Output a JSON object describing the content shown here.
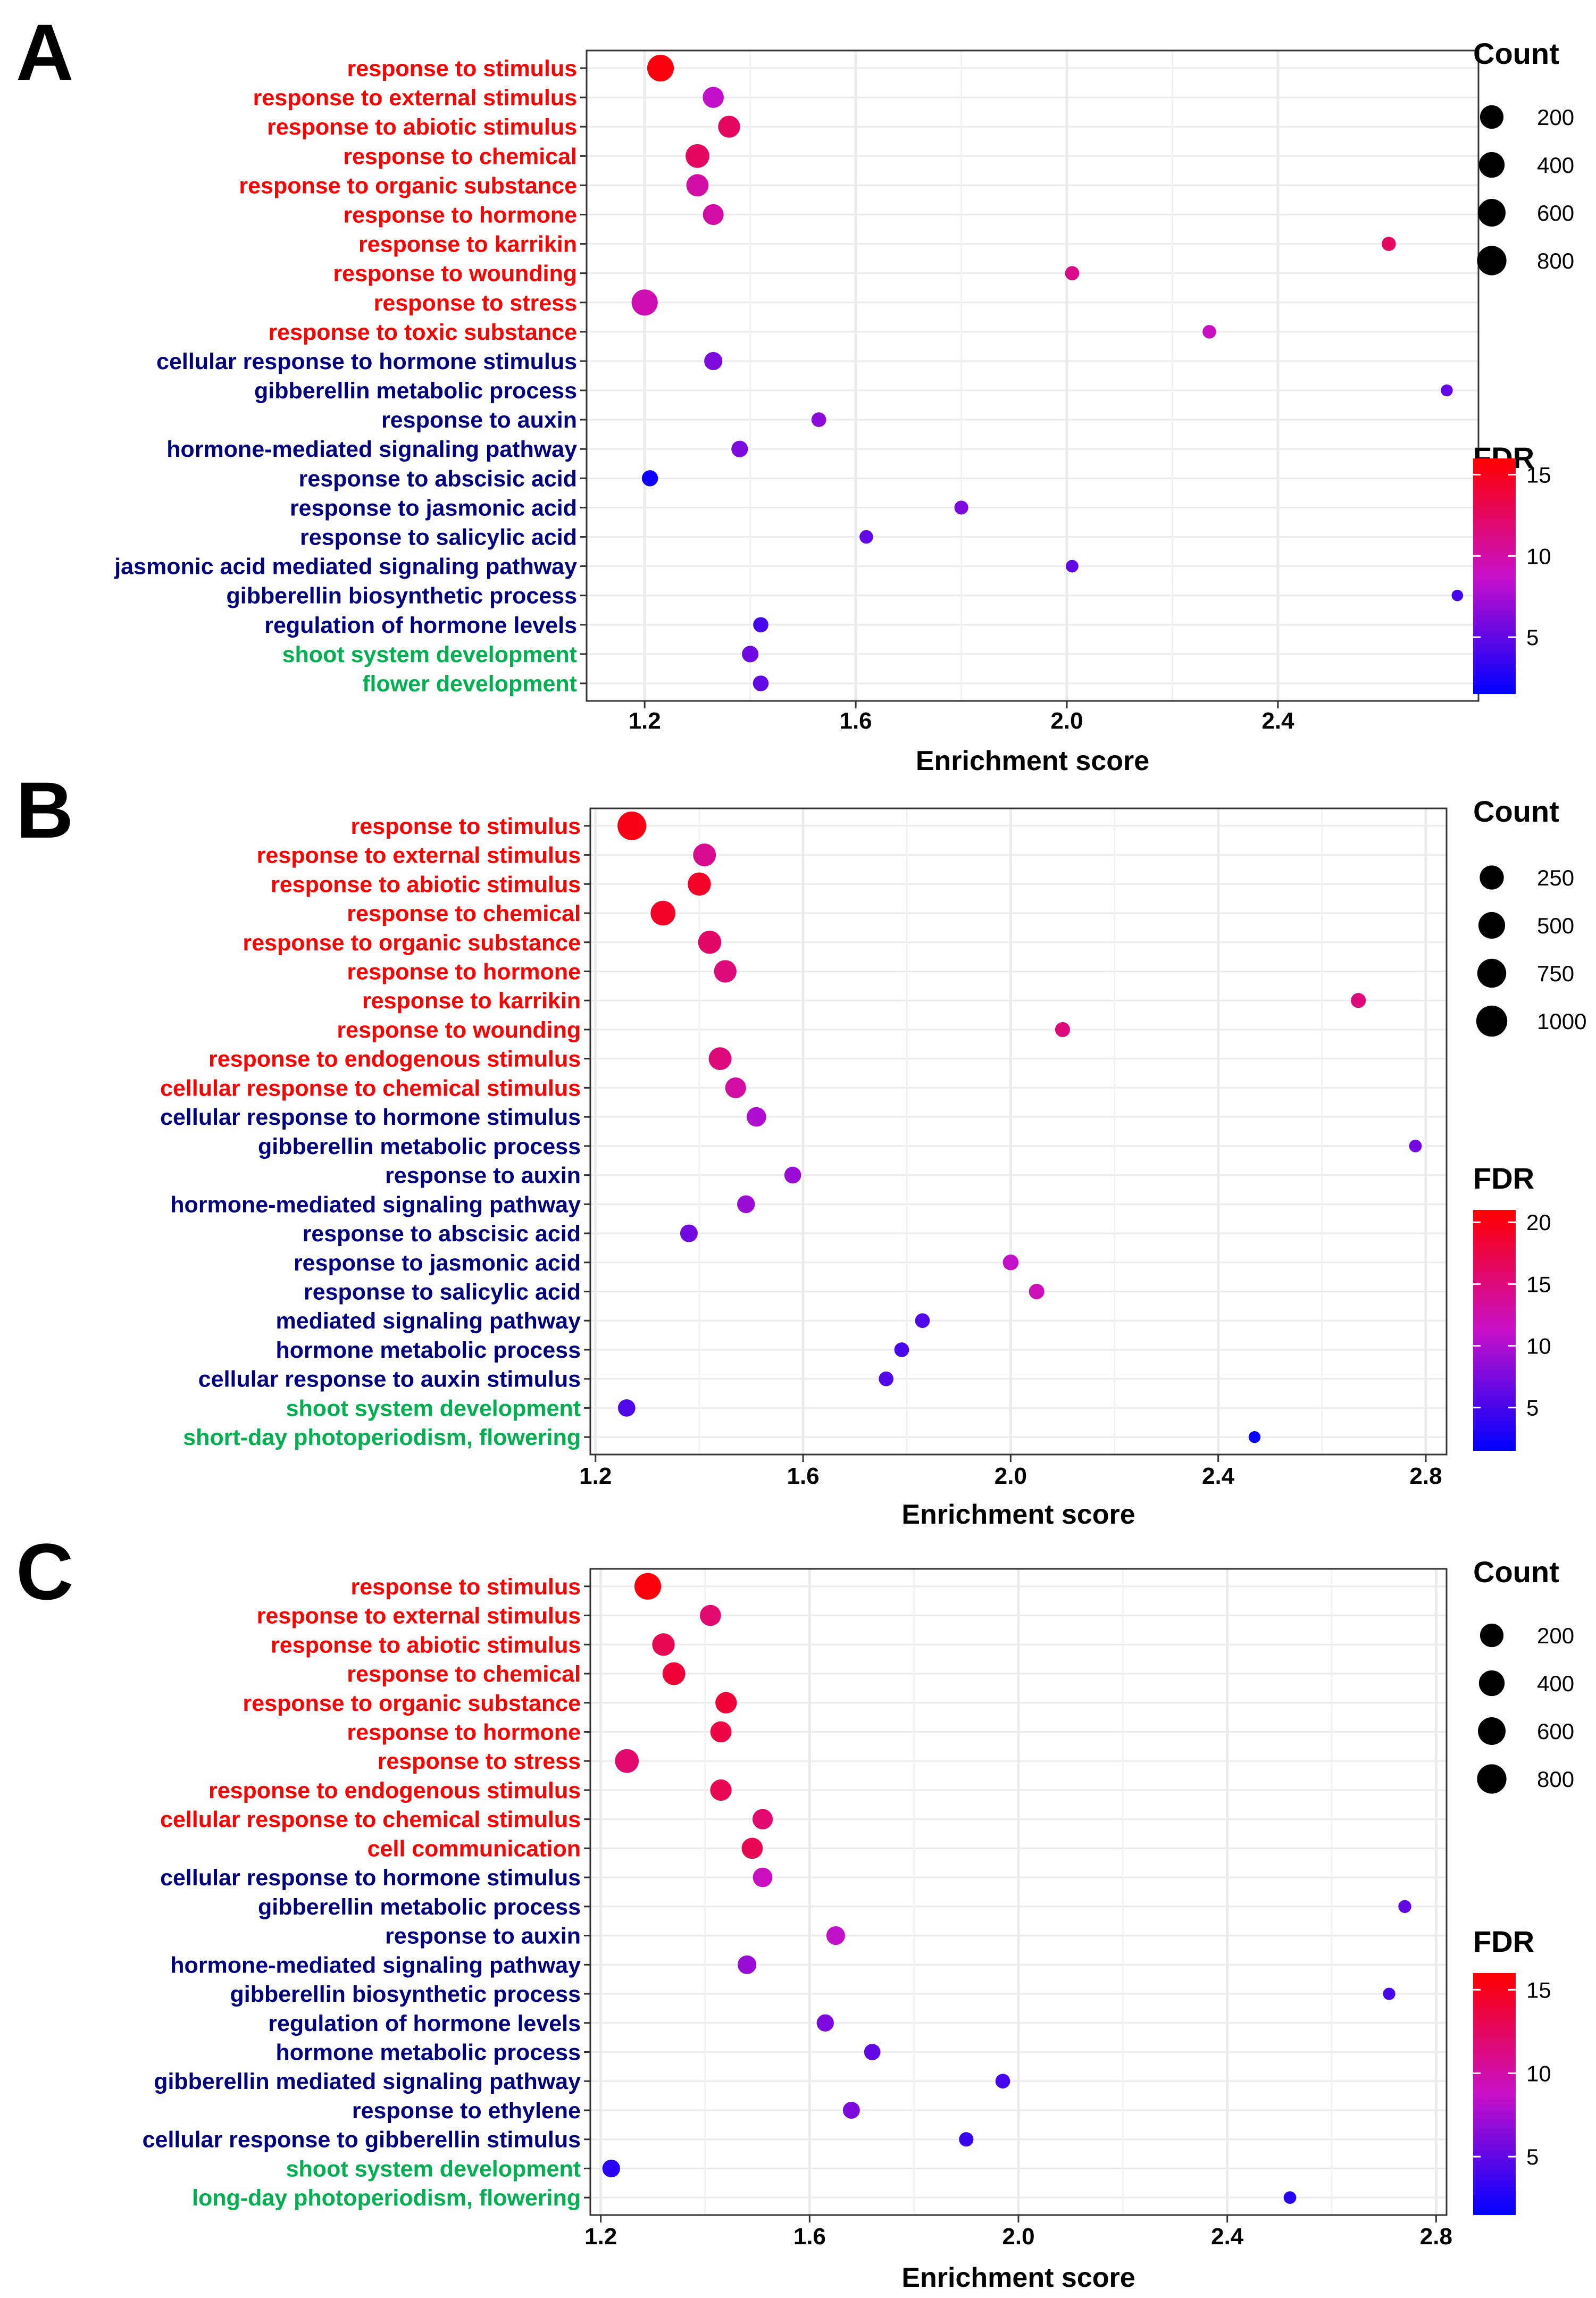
{
  "chart_data": [
    {
      "type": "scatter",
      "panel_label": "A",
      "title": "",
      "xlabel": "Enrichment score",
      "ylabel": "",
      "xlim": [
        1.09,
        2.78
      ],
      "xticks": [
        1.2,
        1.6,
        2.0,
        2.4
      ],
      "xtick_labels": [
        "1.2",
        "1.6",
        "2.0",
        "2.4"
      ],
      "size_legend": {
        "title": "Count",
        "values": [
          200,
          400,
          600,
          800
        ],
        "labels": [
          "200",
          "400",
          "600",
          "800"
        ]
      },
      "color_legend": {
        "title": "FDR",
        "min": 1.5,
        "max": 16,
        "ticks": [
          5,
          10,
          15
        ],
        "tick_labels": [
          "5",
          "10",
          "15"
        ],
        "low_color": "#0000ff",
        "mid_color": "#c810c8",
        "high_color": "#ff0000"
      },
      "category_colors": {
        "red": "#ff0000",
        "blue": "#000080",
        "green": "#00b050"
      },
      "terms": [
        {
          "label": "response to stimulus",
          "group": "red",
          "x": 1.23,
          "count": 950,
          "fdr": 15.5
        },
        {
          "label": "response to external stimulus",
          "group": "red",
          "x": 1.33,
          "count": 500,
          "fdr": 8.5
        },
        {
          "label": "response to abiotic stimulus",
          "group": "red",
          "x": 1.36,
          "count": 560,
          "fdr": 12.5
        },
        {
          "label": "response to chemical",
          "group": "red",
          "x": 1.3,
          "count": 700,
          "fdr": 12.5
        },
        {
          "label": "response to organic substance",
          "group": "red",
          "x": 1.3,
          "count": 580,
          "fdr": 10.0
        },
        {
          "label": "response to hormone",
          "group": "red",
          "x": 1.33,
          "count": 480,
          "fdr": 10.0
        },
        {
          "label": "response to karrikin",
          "group": "red",
          "x": 2.61,
          "count": 140,
          "fdr": 12.5
        },
        {
          "label": "response to wounding",
          "group": "red",
          "x": 2.01,
          "count": 140,
          "fdr": 11.0
        },
        {
          "label": "response to stress",
          "group": "red",
          "x": 1.2,
          "count": 900,
          "fdr": 9.5
        },
        {
          "label": "response to toxic substance",
          "group": "red",
          "x": 2.27,
          "count": 120,
          "fdr": 9.0
        },
        {
          "label": "cellular response to hormone stimulus",
          "group": "blue",
          "x": 1.33,
          "count": 320,
          "fdr": 6.0
        },
        {
          "label": "gibberellin metabolic process",
          "group": "blue",
          "x": 2.72,
          "count": 70,
          "fdr": 5.0
        },
        {
          "label": "response to auxin",
          "group": "blue",
          "x": 1.53,
          "count": 160,
          "fdr": 6.5
        },
        {
          "label": "hormone-mediated signaling pathway",
          "group": "blue",
          "x": 1.38,
          "count": 240,
          "fdr": 6.0
        },
        {
          "label": "response to abscisic acid",
          "group": "blue",
          "x": 1.21,
          "count": 220,
          "fdr": 2.0
        },
        {
          "label": "response to jasmonic acid",
          "group": "blue",
          "x": 1.8,
          "count": 130,
          "fdr": 6.0
        },
        {
          "label": "response to salicylic acid",
          "group": "blue",
          "x": 1.62,
          "count": 120,
          "fdr": 5.0
        },
        {
          "label": "jasmonic acid mediated signaling pathway",
          "group": "blue",
          "x": 2.01,
          "count": 90,
          "fdr": 5.0
        },
        {
          "label": "gibberellin biosynthetic process",
          "group": "blue",
          "x": 2.74,
          "count": 60,
          "fdr": 4.0
        },
        {
          "label": "regulation of hormone levels",
          "group": "blue",
          "x": 1.42,
          "count": 180,
          "fdr": 4.0
        },
        {
          "label": "shoot system development",
          "group": "green",
          "x": 1.4,
          "count": 240,
          "fdr": 5.5
        },
        {
          "label": "flower development",
          "group": "green",
          "x": 1.42,
          "count": 200,
          "fdr": 5.0
        }
      ]
    },
    {
      "type": "scatter",
      "panel_label": "B",
      "title": "",
      "xlabel": "Enrichment score",
      "ylabel": "",
      "xlim": [
        1.19,
        2.84
      ],
      "xticks": [
        1.2,
        1.6,
        2.0,
        2.4,
        2.8
      ],
      "xtick_labels": [
        "1.2",
        "1.6",
        "2.0",
        "2.4",
        "2.8"
      ],
      "size_legend": {
        "title": "Count",
        "values": [
          250,
          500,
          750,
          1000
        ],
        "labels": [
          "250",
          "500",
          "750",
          "1000"
        ]
      },
      "color_legend": {
        "title": "FDR",
        "min": 1.5,
        "max": 21,
        "ticks": [
          5,
          10,
          15,
          20
        ],
        "tick_labels": [
          "5",
          "10",
          "15",
          "20"
        ],
        "low_color": "#0000ff",
        "mid_color": "#c810c8",
        "high_color": "#ff0000"
      },
      "category_colors": {
        "red": "#ff0000",
        "blue": "#000080",
        "green": "#00b050"
      },
      "terms": [
        {
          "label": "response to stimulus",
          "group": "red",
          "x": 1.27,
          "count": 1150,
          "fdr": 20.0
        },
        {
          "label": "response to external stimulus",
          "group": "red",
          "x": 1.41,
          "count": 620,
          "fdr": 14.0
        },
        {
          "label": "response to abiotic stimulus",
          "group": "red",
          "x": 1.4,
          "count": 650,
          "fdr": 19.0
        },
        {
          "label": "response to chemical",
          "group": "red",
          "x": 1.33,
          "count": 780,
          "fdr": 19.0
        },
        {
          "label": "response to organic substance",
          "group": "red",
          "x": 1.42,
          "count": 650,
          "fdr": 16.0
        },
        {
          "label": "response to hormone",
          "group": "red",
          "x": 1.45,
          "count": 600,
          "fdr": 15.0
        },
        {
          "label": "response to karrikin",
          "group": "red",
          "x": 2.67,
          "count": 170,
          "fdr": 15.0
        },
        {
          "label": "response to wounding",
          "group": "red",
          "x": 2.1,
          "count": 170,
          "fdr": 15.0
        },
        {
          "label": "response to endogenous stimulus",
          "group": "red",
          "x": 1.44,
          "count": 620,
          "fdr": 15.0
        },
        {
          "label": "cellular response to chemical stimulus",
          "group": "red",
          "x": 1.47,
          "count": 480,
          "fdr": 13.0
        },
        {
          "label": "cellular response to hormone stimulus",
          "group": "blue",
          "x": 1.51,
          "count": 400,
          "fdr": 10.0
        },
        {
          "label": "gibberellin metabolic process",
          "group": "blue",
          "x": 2.78,
          "count": 90,
          "fdr": 7.0
        },
        {
          "label": "response to auxin",
          "group": "blue",
          "x": 1.58,
          "count": 250,
          "fdr": 9.0
        },
        {
          "label": "hormone-mediated signaling pathway",
          "group": "blue",
          "x": 1.49,
          "count": 300,
          "fdr": 9.0
        },
        {
          "label": "response to abscisic acid",
          "group": "blue",
          "x": 1.38,
          "count": 290,
          "fdr": 7.0
        },
        {
          "label": "response to jasmonic acid",
          "group": "blue",
          "x": 2.0,
          "count": 200,
          "fdr": 11.0
        },
        {
          "label": "response to salicylic acid",
          "group": "blue",
          "x": 2.05,
          "count": 190,
          "fdr": 12.0
        },
        {
          "label": "mediated signaling pathway",
          "group": "blue",
          "x": 1.83,
          "count": 160,
          "fdr": 5.5
        },
        {
          "label": "hormone metabolic process",
          "group": "blue",
          "x": 1.79,
          "count": 160,
          "fdr": 5.0
        },
        {
          "label": "cellular response to auxin stimulus",
          "group": "blue",
          "x": 1.76,
          "count": 160,
          "fdr": 5.5
        },
        {
          "label": "shoot system development",
          "group": "green",
          "x": 1.26,
          "count": 280,
          "fdr": 5.5
        },
        {
          "label": "short-day photoperiodism, flowering",
          "group": "green",
          "x": 2.47,
          "count": 70,
          "fdr": 2.0
        }
      ]
    },
    {
      "type": "scatter",
      "panel_label": "C",
      "title": "",
      "xlabel": "Enrichment score",
      "ylabel": "",
      "xlim": [
        1.18,
        2.82
      ],
      "xticks": [
        1.2,
        1.6,
        2.0,
        2.4,
        2.8
      ],
      "xtick_labels": [
        "1.2",
        "1.6",
        "2.0",
        "2.4",
        "2.8"
      ],
      "size_legend": {
        "title": "Count",
        "values": [
          200,
          400,
          600,
          800
        ],
        "labels": [
          "200",
          "400",
          "600",
          "800"
        ]
      },
      "color_legend": {
        "title": "FDR",
        "min": 1.5,
        "max": 16,
        "ticks": [
          5,
          10,
          15
        ],
        "tick_labels": [
          "5",
          "10",
          "15"
        ],
        "low_color": "#0000ff",
        "mid_color": "#c810c8",
        "high_color": "#ff0000"
      },
      "category_colors": {
        "red": "#ff0000",
        "blue": "#000080",
        "green": "#00b050"
      },
      "terms": [
        {
          "label": "response to stimulus",
          "group": "red",
          "x": 1.29,
          "count": 950,
          "fdr": 15.5
        },
        {
          "label": "response to external stimulus",
          "group": "red",
          "x": 1.41,
          "count": 500,
          "fdr": 12.0
        },
        {
          "label": "response to abiotic stimulus",
          "group": "red",
          "x": 1.32,
          "count": 600,
          "fdr": 13.0
        },
        {
          "label": "response to chemical",
          "group": "red",
          "x": 1.34,
          "count": 620,
          "fdr": 14.0
        },
        {
          "label": "response to organic substance",
          "group": "red",
          "x": 1.44,
          "count": 520,
          "fdr": 14.0
        },
        {
          "label": "response to hormone",
          "group": "red",
          "x": 1.43,
          "count": 500,
          "fdr": 13.5
        },
        {
          "label": "response to stress",
          "group": "red",
          "x": 1.25,
          "count": 700,
          "fdr": 12.0
        },
        {
          "label": "response to endogenous stimulus",
          "group": "red",
          "x": 1.43,
          "count": 520,
          "fdr": 13.0
        },
        {
          "label": "cellular response to chemical stimulus",
          "group": "red",
          "x": 1.51,
          "count": 450,
          "fdr": 12.0
        },
        {
          "label": "cell communication",
          "group": "red",
          "x": 1.49,
          "count": 500,
          "fdr": 13.0
        },
        {
          "label": "cellular response to hormone stimulus",
          "group": "blue",
          "x": 1.51,
          "count": 400,
          "fdr": 9.0
        },
        {
          "label": "gibberellin metabolic process",
          "group": "blue",
          "x": 2.74,
          "count": 100,
          "fdr": 5.0
        },
        {
          "label": "response to auxin",
          "group": "blue",
          "x": 1.65,
          "count": 350,
          "fdr": 8.5
        },
        {
          "label": "hormone-mediated signaling pathway",
          "group": "blue",
          "x": 1.48,
          "count": 350,
          "fdr": 7.0
        },
        {
          "label": "gibberellin biosynthetic process",
          "group": "blue",
          "x": 2.71,
          "count": 80,
          "fdr": 4.0
        },
        {
          "label": "regulation of hormone levels",
          "group": "blue",
          "x": 1.63,
          "count": 270,
          "fdr": 6.0
        },
        {
          "label": "hormone metabolic process",
          "group": "blue",
          "x": 1.72,
          "count": 230,
          "fdr": 5.0
        },
        {
          "label": "gibberellin mediated signaling pathway",
          "group": "blue",
          "x": 1.97,
          "count": 160,
          "fdr": 4.0
        },
        {
          "label": "response to ethylene",
          "group": "blue",
          "x": 1.68,
          "count": 260,
          "fdr": 6.0
        },
        {
          "label": "cellular response to gibberellin stimulus",
          "group": "blue",
          "x": 1.9,
          "count": 150,
          "fdr": 3.5
        },
        {
          "label": "shoot system development",
          "group": "green",
          "x": 1.22,
          "count": 300,
          "fdr": 3.0
        },
        {
          "label": "long-day photoperiodism, flowering",
          "group": "green",
          "x": 2.52,
          "count": 90,
          "fdr": 3.0
        }
      ]
    }
  ]
}
